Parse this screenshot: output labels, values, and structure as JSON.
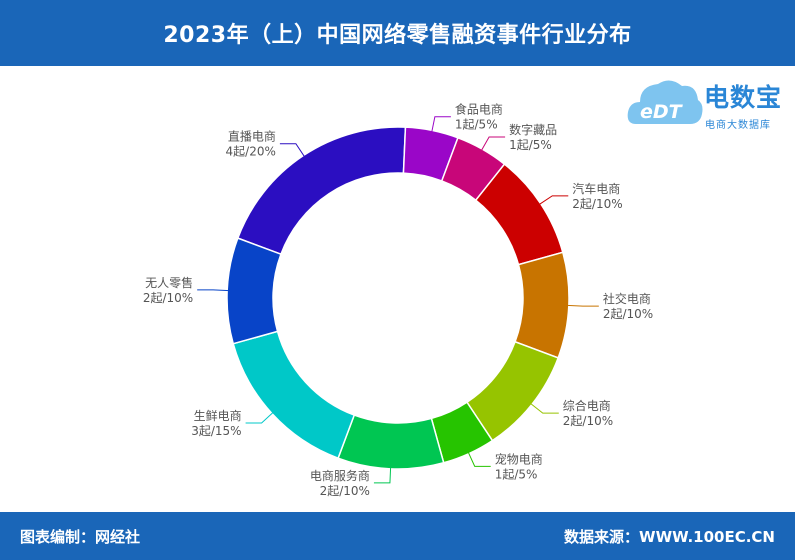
{
  "header": {
    "title": "2023年（上）中国网络零售融资事件行业分布"
  },
  "logo": {
    "brand": "电数宝",
    "sub": "电商大数据库",
    "mark": "eDT"
  },
  "footer": {
    "left": "图表编制：网经社",
    "right": "数据来源：WWW.100EC.CN"
  },
  "chart_data": {
    "type": "pie",
    "title": "2023年（上）中国网络零售融资事件行业分布",
    "slices": [
      {
        "name": "直播电商",
        "value": 4,
        "percent": "20%",
        "count_label": "4起/20%",
        "color": "#2b0ec1"
      },
      {
        "name": "食品电商",
        "value": 1,
        "percent": "5%",
        "count_label": "1起/5%",
        "color": "#9a06c8"
      },
      {
        "name": "数字藏品",
        "value": 1,
        "percent": "5%",
        "count_label": "1起/5%",
        "color": "#c80679"
      },
      {
        "name": "汽车电商",
        "value": 2,
        "percent": "10%",
        "count_label": "2起/10%",
        "color": "#cc0000"
      },
      {
        "name": "社交电商",
        "value": 2,
        "percent": "10%",
        "count_label": "2起/10%",
        "color": "#c87400"
      },
      {
        "name": "综合电商",
        "value": 2,
        "percent": "10%",
        "count_label": "2起/10%",
        "color": "#96c400"
      },
      {
        "name": "宠物电商",
        "value": 1,
        "percent": "5%",
        "count_label": "1起/5%",
        "color": "#26c400"
      },
      {
        "name": "电商服务商",
        "value": 2,
        "percent": "10%",
        "count_label": "2起/10%",
        "color": "#00c652"
      },
      {
        "name": "生鲜电商",
        "value": 3,
        "percent": "15%",
        "count_label": "3起/15%",
        "color": "#00c8c8"
      },
      {
        "name": "无人零售",
        "value": 2,
        "percent": "10%",
        "count_label": "2起/10%",
        "color": "#0844c8"
      }
    ]
  }
}
